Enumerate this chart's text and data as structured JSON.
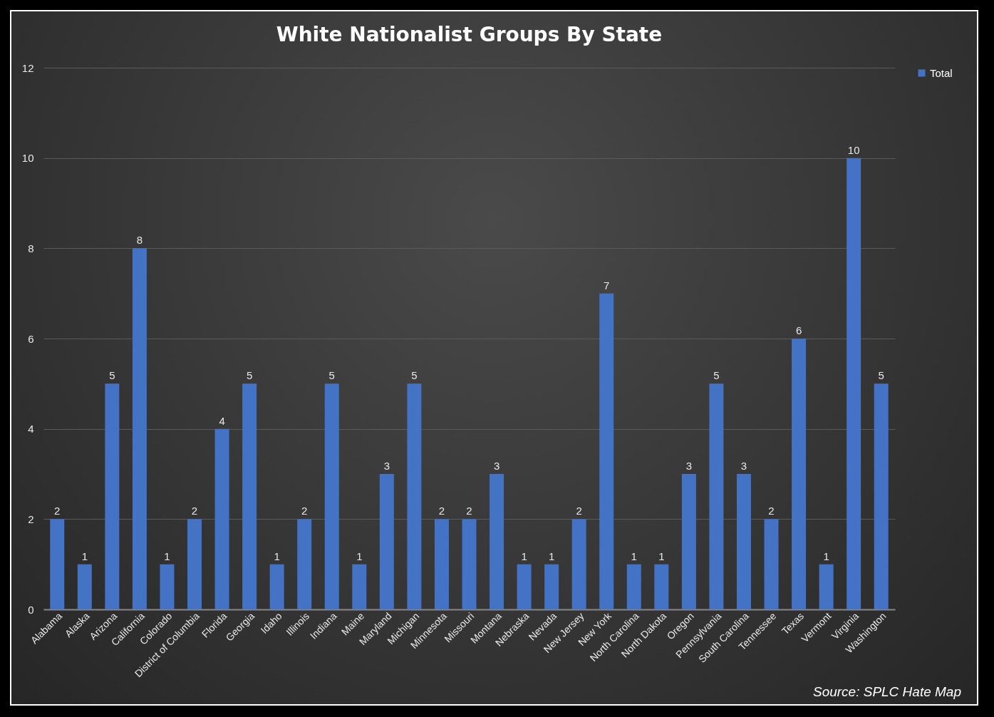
{
  "chart_data": {
    "type": "bar",
    "title": "White Nationalist Groups By State",
    "categories": [
      "Alabama",
      "Alaska",
      "Arizona",
      "California",
      "Colorado",
      "District of Columbia",
      "Florida",
      "Georgia",
      "Idaho",
      "Illinois",
      "Indiana",
      "Maine",
      "Maryland",
      "Michigan",
      "Minnesota",
      "Missouri",
      "Montana",
      "Nebraska",
      "Nevada",
      "New Jersey",
      "New York",
      "North Carolina",
      "North Dakota",
      "Oregon",
      "Pennsylvania",
      "South Carolina",
      "Tennessee",
      "Texas",
      "Vermont",
      "Virginia",
      "Washington"
    ],
    "series": [
      {
        "name": "Total",
        "color": "#4472c4",
        "values": [
          2,
          1,
          5,
          8,
          1,
          2,
          4,
          5,
          1,
          2,
          5,
          1,
          3,
          5,
          2,
          2,
          3,
          1,
          1,
          2,
          7,
          1,
          1,
          3,
          5,
          3,
          2,
          6,
          1,
          10,
          5
        ]
      }
    ],
    "ylim": [
      0,
      12
    ],
    "yticks": [
      0,
      2,
      4,
      6,
      8,
      10,
      12
    ],
    "grid": "y",
    "legend": "right",
    "data_labels": true,
    "annotations": [
      "Source: SPLC Hate Map"
    ]
  }
}
